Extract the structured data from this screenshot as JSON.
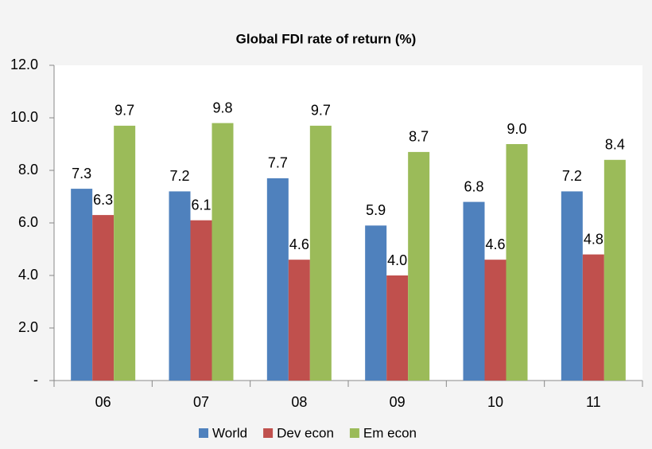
{
  "chart_data": {
    "type": "bar",
    "title": "Global FDI rate of return (%)",
    "categories": [
      "06",
      "07",
      "08",
      "09",
      "10",
      "11"
    ],
    "series": [
      {
        "name": "World",
        "color": "#4f81bd",
        "values": [
          7.3,
          7.2,
          7.7,
          5.9,
          6.8,
          7.2
        ],
        "value_labels": [
          "7.3",
          "7.2",
          "7.7",
          "5.9",
          "6.8",
          "7.2"
        ]
      },
      {
        "name": "Dev econ",
        "color": "#c0504d",
        "values": [
          6.3,
          6.1,
          4.6,
          4.0,
          4.6,
          4.8
        ],
        "value_labels": [
          "6.3",
          "6.1",
          "4.6",
          "4.0",
          "4.6",
          "4.8"
        ]
      },
      {
        "name": "Em econ",
        "color": "#9bbb59",
        "values": [
          9.7,
          9.8,
          9.7,
          8.7,
          9.0,
          8.4
        ],
        "value_labels": [
          "9.7",
          "9.8",
          "9.7",
          "8.7",
          "9.0",
          "8.4"
        ]
      }
    ],
    "ylim": [
      0,
      12
    ],
    "yticks": [
      {
        "value": 0,
        "label": "-"
      },
      {
        "value": 2,
        "label": "2.0"
      },
      {
        "value": 4,
        "label": "4.0"
      },
      {
        "value": 6,
        "label": "6.0"
      },
      {
        "value": 8,
        "label": "8.0"
      },
      {
        "value": 10,
        "label": "10.0"
      },
      {
        "value": 12,
        "label": "12.0"
      }
    ],
    "legend": "bottom"
  }
}
